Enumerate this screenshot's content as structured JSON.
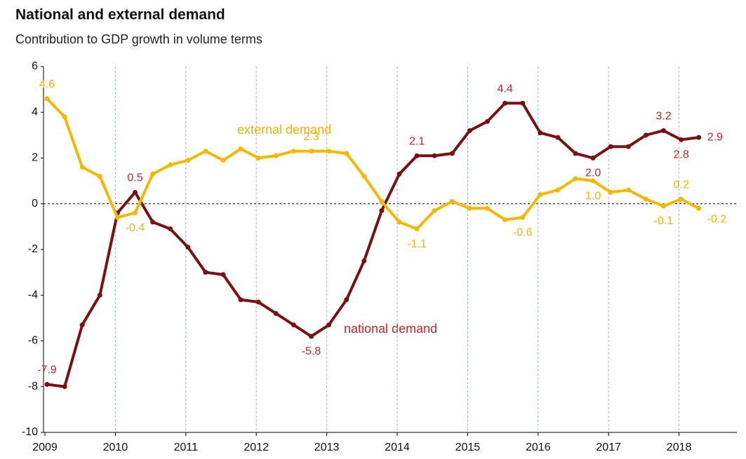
{
  "chart_data": {
    "type": "line",
    "title": "National and external demand",
    "subtitle": "Contribution to GDP growth in volume terms",
    "categories": [
      "2009",
      null,
      null,
      null,
      "2010",
      null,
      null,
      null,
      "2011",
      null,
      null,
      null,
      "2012",
      null,
      null,
      null,
      "2013",
      null,
      null,
      null,
      "2014",
      null,
      null,
      null,
      "2015",
      null,
      null,
      null,
      "2016",
      null,
      null,
      null,
      "2017",
      null,
      null,
      null,
      "2018",
      null
    ],
    "series": [
      {
        "name": "national demand",
        "color": "#7b1010",
        "label_color": "#c8252c",
        "values": [
          -7.9,
          -8.0,
          -5.3,
          -4.0,
          -0.4,
          0.5,
          -0.8,
          -1.1,
          -1.9,
          -3.0,
          -3.1,
          -4.2,
          -4.3,
          -4.8,
          -5.3,
          -5.8,
          -5.3,
          -4.2,
          -2.5,
          -0.3,
          1.3,
          2.1,
          2.1,
          2.2,
          3.2,
          3.6,
          4.4,
          4.4,
          3.1,
          2.9,
          2.2,
          2.0,
          2.5,
          2.5,
          3.0,
          3.2,
          2.8,
          2.9
        ],
        "value_labels": [
          "-7.9",
          null,
          null,
          null,
          null,
          "0.5",
          null,
          null,
          null,
          null,
          null,
          null,
          null,
          null,
          null,
          "-5.8",
          null,
          null,
          null,
          null,
          null,
          "2.1",
          null,
          null,
          null,
          null,
          "4.4",
          null,
          null,
          null,
          null,
          "2.0",
          null,
          null,
          null,
          "3.2",
          "2.8",
          "2.9"
        ]
      },
      {
        "name": "external demand",
        "color": "#f5b800",
        "label_color": "#f0b400",
        "values": [
          4.6,
          3.8,
          1.6,
          1.2,
          -0.6,
          -0.4,
          1.3,
          1.7,
          1.9,
          2.3,
          1.9,
          2.4,
          2.0,
          2.1,
          2.3,
          2.3,
          2.3,
          2.2,
          1.2,
          0.1,
          -0.8,
          -1.1,
          -0.3,
          0.1,
          -0.2,
          -0.2,
          -0.7,
          -0.6,
          0.4,
          0.6,
          1.1,
          1.0,
          0.5,
          0.6,
          0.2,
          -0.1,
          0.2,
          -0.2
        ],
        "value_labels": [
          "4.6",
          null,
          null,
          null,
          null,
          "-0.4",
          null,
          null,
          null,
          null,
          null,
          null,
          null,
          null,
          null,
          "2.3",
          null,
          null,
          null,
          null,
          null,
          "-1.1",
          null,
          null,
          null,
          null,
          null,
          "-0.6",
          null,
          null,
          null,
          "1.0",
          null,
          null,
          null,
          "-0.1",
          "0.2",
          "-0.2"
        ]
      }
    ],
    "ylim": [
      -10,
      6
    ],
    "yticks": [
      -10,
      -8,
      -6,
      -4,
      -2,
      0,
      2,
      4,
      6
    ],
    "grid": true
  }
}
